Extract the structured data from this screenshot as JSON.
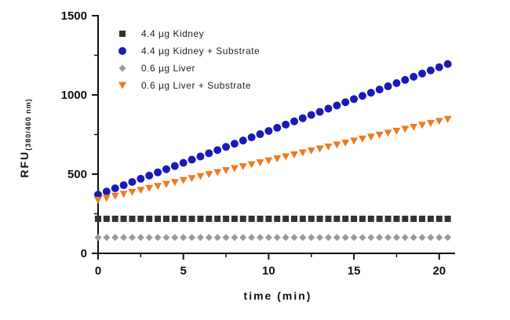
{
  "chart_data": {
    "type": "scatter",
    "title": "",
    "xlabel": "time (min)",
    "ylabel_main": "RFU",
    "ylabel_sub": "(380/460 nm)",
    "xlim": [
      0,
      20.7
    ],
    "ylim": [
      0,
      1500
    ],
    "xticks": [
      0,
      5,
      10,
      15,
      20
    ],
    "yticks": [
      0,
      500,
      1000,
      1500
    ],
    "legend_position": "top-left",
    "series": [
      {
        "name": "4.4 µg Kidney",
        "marker": "square",
        "color": "#333333",
        "x_start": 0,
        "x_step": 0.5,
        "count": 42,
        "y_start": 218,
        "y_end": 218
      },
      {
        "name": "4.4 µg Kidney + Substrate",
        "marker": "circle",
        "color": "#1a1ab8",
        "x_start": 0,
        "x_step": 0.5,
        "count": 42,
        "y_start": 370,
        "y_end": 1195
      },
      {
        "name": "0.6 µg Liver",
        "marker": "diamond",
        "color": "#999999",
        "x_start": 0,
        "x_step": 0.5,
        "count": 42,
        "y_start": 100,
        "y_end": 100
      },
      {
        "name": "0.6 µg Liver + Substrate",
        "marker": "triangle-down",
        "color": "#f07a1e",
        "x_start": 0,
        "x_step": 0.5,
        "count": 42,
        "y_start": 335,
        "y_end": 845
      }
    ]
  }
}
